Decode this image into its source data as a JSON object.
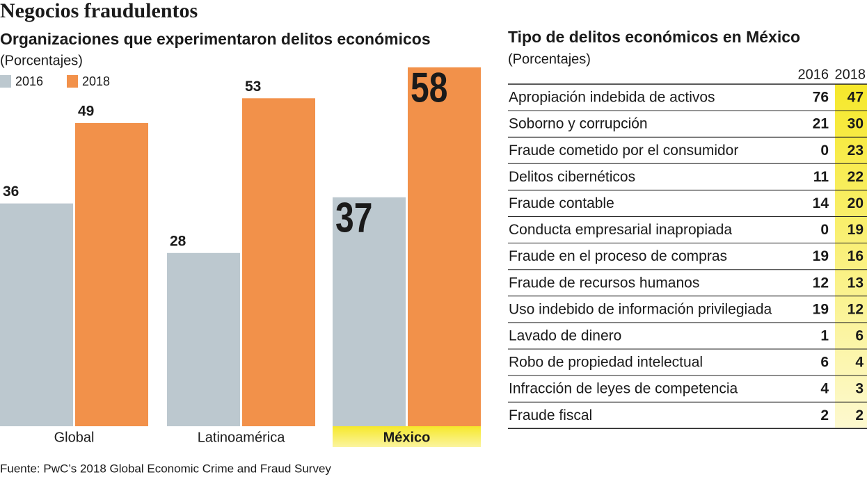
{
  "title": "Negocios fraudulentos",
  "chart_data": {
    "type": "bar",
    "title": "Organizaciones que experimentaron delitos económicos",
    "subtitle": "(Porcentajes)",
    "categories": [
      "Global",
      "Latinoamérica",
      "México"
    ],
    "series": [
      {
        "name": "2016",
        "color": "#bcc8cf",
        "values": [
          36,
          28,
          37
        ]
      },
      {
        "name": "2018",
        "color": "#f2914a",
        "values": [
          49,
          53,
          58
        ]
      }
    ]
  },
  "table": {
    "title": "Tipo de delitos económicos en México",
    "subtitle": "(Porcentajes)",
    "columns": [
      "2016",
      "2018"
    ],
    "rows": [
      [
        "Apropiación indebida de activos",
        76,
        47
      ],
      [
        "Soborno y corrupción",
        21,
        30
      ],
      [
        "Fraude cometido por el consumidor",
        0,
        23
      ],
      [
        "Delitos cibernéticos",
        11,
        22
      ],
      [
        "Fraude contable",
        14,
        20
      ],
      [
        "Conducta empresarial inapropiada",
        0,
        19
      ],
      [
        "Fraude en el proceso de compras",
        19,
        16
      ],
      [
        "Fraude de recursos humanos",
        12,
        13
      ],
      [
        "Uso indebido de información privilegiada",
        19,
        12
      ],
      [
        "Lavado de dinero",
        1,
        6
      ],
      [
        "Robo de propiedad intelectual",
        6,
        4
      ],
      [
        "Infracción de leyes de competencia",
        4,
        3
      ],
      [
        "Fraude fiscal",
        2,
        2
      ]
    ]
  },
  "source": "Fuente: PwC’s 2018 Global Economic Crime and Fraud Survey"
}
